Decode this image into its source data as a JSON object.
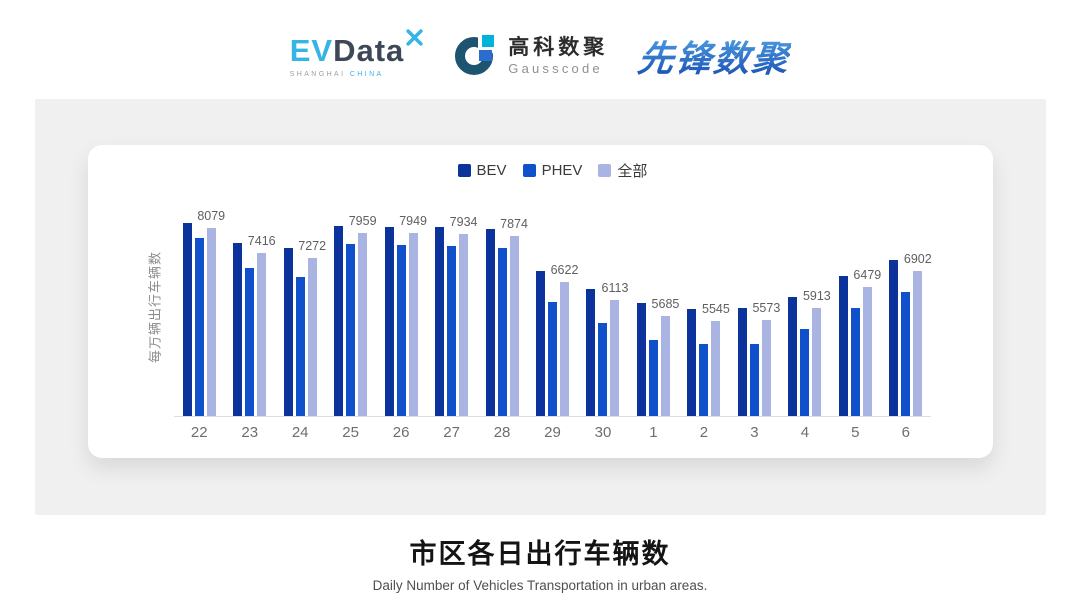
{
  "header": {
    "evdata": {
      "ev": "EV",
      "data": "Data",
      "sub_left": "SHANGHAI",
      "sub_right": "CHINA"
    },
    "gausscode": {
      "cn": "高科数聚",
      "en": "Gausscode"
    },
    "xianfeng": {
      "text": "先锋数聚"
    }
  },
  "chart_data": {
    "type": "bar",
    "title": "市区各日出行车辆数",
    "subtitle": "Daily Number of Vehicles Transportation in urban areas.",
    "ylabel": "每万辆出行车辆数",
    "categories": [
      "22",
      "23",
      "24",
      "25",
      "26",
      "27",
      "28",
      "29",
      "30",
      "1",
      "2",
      "3",
      "4",
      "5",
      "6"
    ],
    "series": [
      {
        "name": "BEV",
        "color": "#0C339C",
        "values": [
          8230,
          7670,
          7550,
          8140,
          8120,
          8110,
          8050,
          6915,
          6430,
          6050,
          5885,
          5910,
          6210,
          6780,
          7205
        ]
      },
      {
        "name": "PHEV",
        "color": "#1150CB",
        "values": [
          7825,
          6980,
          6750,
          7640,
          7625,
          7600,
          7550,
          6075,
          5485,
          5020,
          4910,
          4910,
          5320,
          5890,
          6350
        ]
      },
      {
        "name": "全部",
        "color": "#A9B4E2",
        "data_labels": true,
        "values": [
          8079,
          7416,
          7272,
          7959,
          7949,
          7934,
          7874,
          6622,
          6113,
          5685,
          5545,
          5573,
          5913,
          6479,
          6902
        ]
      }
    ],
    "visible_value_labels": [
      8079,
      7416,
      7272,
      7959,
      7949,
      7934,
      7874,
      6622,
      6113,
      5685,
      5545,
      5573,
      5913,
      6479,
      6902
    ],
    "ylim": [
      2950,
      8550
    ],
    "legend_position": "top",
    "grid": false
  },
  "footer": {
    "title": "市区各日出行车辆数",
    "subtitle": "Daily Number of Vehicles Transportation in urban areas."
  }
}
